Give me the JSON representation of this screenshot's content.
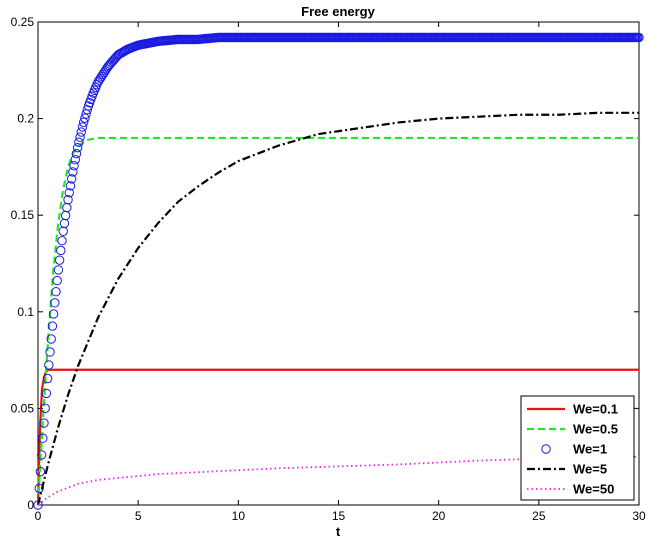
{
  "chart_data": {
    "type": "line",
    "title": "Free energy",
    "xlabel": "t",
    "ylabel": "",
    "xlim": [
      0,
      30
    ],
    "ylim": [
      0,
      0.25
    ],
    "xticks": [
      0,
      5,
      10,
      15,
      20,
      25,
      30
    ],
    "xtick_labels": [
      "0",
      "5",
      "10",
      "15",
      "20",
      "25",
      "30"
    ],
    "yticks": [
      0,
      0.05,
      0.1,
      0.15,
      0.2,
      0.25
    ],
    "ytick_labels": [
      "0",
      "0.05",
      "0.1",
      "0.15",
      "0.2",
      "0.25"
    ],
    "grid": false,
    "legend_position": "bottom-right",
    "series": [
      {
        "name": "We=0.1",
        "color": "#e8140c",
        "style": "solid",
        "x": [
          0,
          0.1,
          0.2,
          0.3,
          0.4,
          0.5,
          0.6,
          0.8,
          1,
          2,
          5,
          10,
          15,
          20,
          25,
          30
        ],
        "y": [
          0,
          0.04,
          0.06,
          0.066,
          0.069,
          0.07,
          0.07,
          0.07,
          0.07,
          0.07,
          0.07,
          0.07,
          0.07,
          0.07,
          0.07,
          0.07
        ]
      },
      {
        "name": "We=0.5",
        "color": "#22e822",
        "style": "dashed",
        "x": [
          0,
          0.25,
          0.5,
          0.75,
          1,
          1.25,
          1.5,
          1.75,
          2,
          2.5,
          3,
          4,
          5,
          10,
          15,
          20,
          25,
          30
        ],
        "y": [
          0,
          0.045,
          0.085,
          0.12,
          0.145,
          0.163,
          0.175,
          0.182,
          0.186,
          0.189,
          0.19,
          0.19,
          0.19,
          0.19,
          0.19,
          0.19,
          0.19,
          0.19
        ]
      },
      {
        "name": "We=1",
        "color": "#1a1ae0",
        "style": "circles",
        "x": [
          0,
          0.25,
          0.5,
          0.75,
          1,
          1.25,
          1.5,
          1.75,
          2,
          2.25,
          2.5,
          2.75,
          3,
          3.5,
          4,
          4.5,
          5,
          5.5,
          6,
          7,
          8,
          9,
          10,
          12,
          15,
          20,
          25,
          30
        ],
        "y": [
          0,
          0.036,
          0.068,
          0.096,
          0.12,
          0.141,
          0.158,
          0.173,
          0.186,
          0.197,
          0.206,
          0.213,
          0.219,
          0.227,
          0.233,
          0.236,
          0.238,
          0.239,
          0.24,
          0.241,
          0.241,
          0.242,
          0.242,
          0.242,
          0.242,
          0.242,
          0.242,
          0.242
        ]
      },
      {
        "name": "We=5",
        "color": "#000000",
        "style": "dashdot",
        "x": [
          0,
          0.5,
          1,
          1.5,
          2,
          3,
          4,
          5,
          6,
          7,
          8,
          9,
          10,
          12,
          14,
          16,
          18,
          20,
          22,
          24,
          26,
          28,
          30
        ],
        "y": [
          0,
          0.021,
          0.04,
          0.057,
          0.072,
          0.097,
          0.117,
          0.133,
          0.146,
          0.157,
          0.165,
          0.172,
          0.178,
          0.186,
          0.192,
          0.195,
          0.198,
          0.2,
          0.201,
          0.202,
          0.202,
          0.203,
          0.203
        ]
      },
      {
        "name": "We=50",
        "color": "#ee22ee",
        "style": "dotted",
        "x": [
          0,
          0.5,
          1,
          2,
          3,
          4,
          5,
          6,
          8,
          10,
          12,
          15,
          18,
          20,
          22,
          25,
          28,
          30
        ],
        "y": [
          0,
          0.004,
          0.007,
          0.011,
          0.013,
          0.014,
          0.015,
          0.016,
          0.017,
          0.018,
          0.019,
          0.02,
          0.021,
          0.022,
          0.023,
          0.024,
          0.025,
          0.025
        ]
      }
    ]
  }
}
